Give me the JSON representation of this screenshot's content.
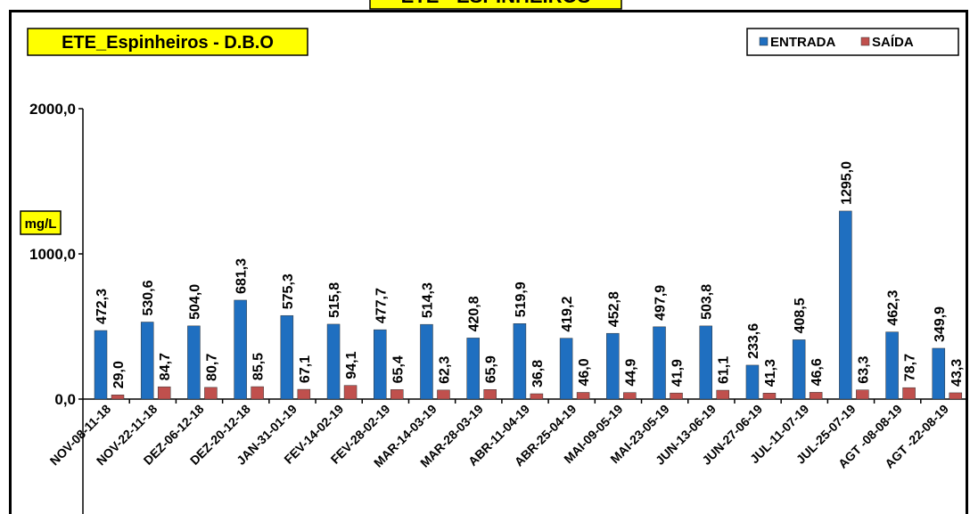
{
  "chart_data": {
    "type": "bar",
    "page_title": "ETE - ESPINHEIROS",
    "title": "ETE_Espinheiros - D.B.O",
    "ylabel": "mg/L",
    "categories": [
      "NOV-08-11-18",
      "NOV-22-11-18",
      "DEZ-06-12-18",
      "DEZ-20-12-18",
      "JAN-31-01-19",
      "FEV-14-02-19",
      "FEV-28-02-19",
      "MAR-14-03-19",
      "MAR-28-03-19",
      "ABR-11-04-19",
      "ABR-25-04-19",
      "MAI-09-05-19",
      "MAI-23-05-19",
      "JUN-13-06-19",
      "JUN-27-06-19",
      "JUL-11-07-19",
      "JUL-25-07-19",
      "AGT -08-08-19",
      "AGT -22-08-19"
    ],
    "series": [
      {
        "name": "ENTRADA",
        "color": "#1f6fc0",
        "values": [
          472.3,
          530.6,
          504.0,
          681.3,
          575.3,
          515.8,
          477.7,
          514.3,
          420.8,
          519.9,
          419.2,
          452.8,
          497.9,
          503.8,
          233.6,
          408.5,
          1295.0,
          462.3,
          349.9
        ],
        "value_labels": [
          "472,3",
          "530,6",
          "504,0",
          "681,3",
          "575,3",
          "515,8",
          "477,7",
          "514,3",
          "420,8",
          "519,9",
          "419,2",
          "452,8",
          "497,9",
          "503,8",
          "233,6",
          "408,5",
          "1295,0",
          "462,3",
          "349,9"
        ]
      },
      {
        "name": "SAÍDA",
        "color": "#c0504d",
        "values": [
          29.0,
          84.7,
          80.7,
          85.5,
          67.1,
          94.1,
          65.4,
          62.3,
          65.9,
          36.8,
          46.0,
          44.9,
          41.9,
          61.1,
          41.3,
          46.6,
          63.3,
          78.7,
          43.3
        ],
        "value_labels": [
          "29,0",
          "84,7",
          "80,7",
          "85,5",
          "67,1",
          "94,1",
          "65,4",
          "62,3",
          "65,9",
          "36,8",
          "46,0",
          "44,9",
          "41,9",
          "61,1",
          "41,3",
          "46,6",
          "63,3",
          "78,7",
          "43,3"
        ]
      }
    ],
    "ylim": [
      0,
      2000
    ],
    "yticks": [
      {
        "value": 0,
        "label": "0,0"
      },
      {
        "value": 1000,
        "label": "1000,0"
      },
      {
        "value": 2000,
        "label": "2000,0"
      }
    ],
    "legend": "top-right",
    "grid": false
  }
}
